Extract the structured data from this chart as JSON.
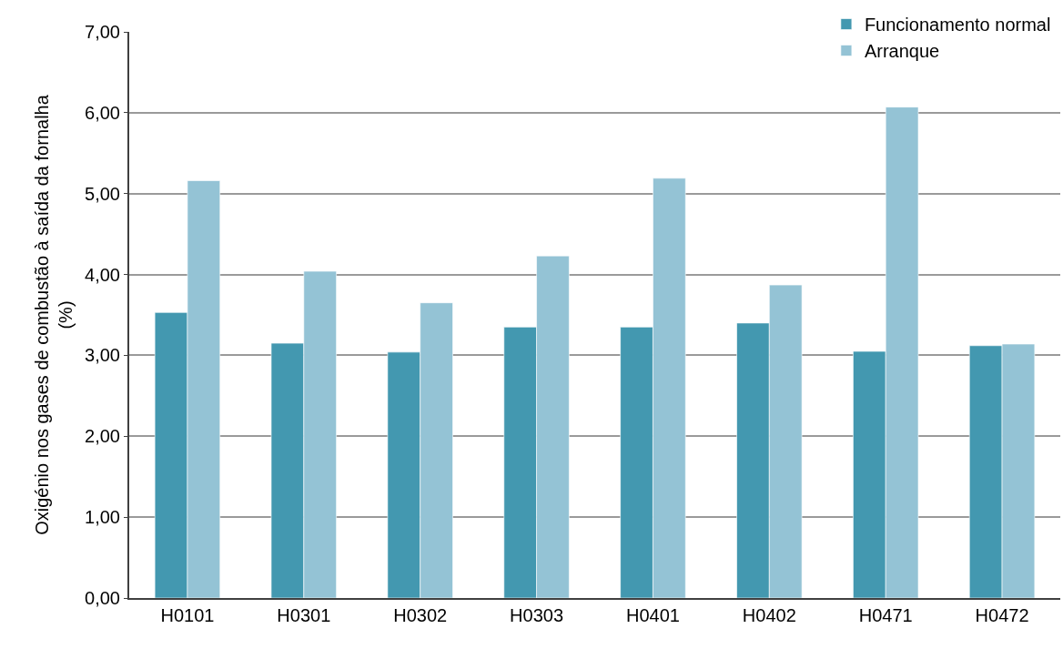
{
  "chart_data": {
    "type": "bar",
    "ylabel": "Oxigénio nos gases de combustão à saída da fornalha\n(%)",
    "categories": [
      "H0101",
      "H0301",
      "H0302",
      "H0303",
      "H0401",
      "H0402",
      "H0471",
      "H0472"
    ],
    "series": [
      {
        "name": "Funcionamento normal",
        "color": "#4398b0",
        "values": [
          3.53,
          3.15,
          3.04,
          3.35,
          3.35,
          3.4,
          3.05,
          3.12
        ]
      },
      {
        "name": "Arranque",
        "color": "#94c3d5",
        "values": [
          5.16,
          4.04,
          3.65,
          4.23,
          5.19,
          3.87,
          6.07,
          3.14
        ]
      }
    ],
    "ylim": [
      0,
      7
    ],
    "yticks": [
      {
        "value": 0,
        "label": "0,00"
      },
      {
        "value": 1,
        "label": "1,00"
      },
      {
        "value": 2,
        "label": "2,00"
      },
      {
        "value": 3,
        "label": "3,00"
      },
      {
        "value": 4,
        "label": "4,00"
      },
      {
        "value": 5,
        "label": "5,00"
      },
      {
        "value": 6,
        "label": "6,00"
      },
      {
        "value": 7,
        "label": "7,00"
      }
    ],
    "grid": "y",
    "legend": "top right"
  }
}
